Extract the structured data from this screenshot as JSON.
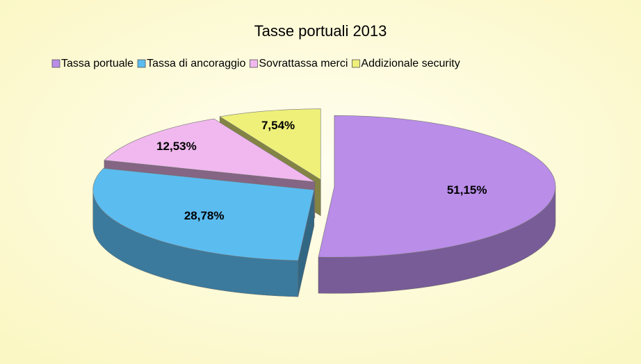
{
  "chart_data": {
    "type": "pie",
    "title": "Tasse portuali 2013",
    "categories": [
      "Tassa portuale",
      "Tassa di ancoraggio",
      "Sovrattassa merci",
      "Addizionale security"
    ],
    "values": [
      51.15,
      28.78,
      12.53,
      7.54
    ],
    "value_labels": [
      "51,15%",
      "28,78%",
      "12,53%",
      "7,54%"
    ],
    "colors": [
      "#b98de8",
      "#5bbcf0",
      "#f0b8ee",
      "#eef07a"
    ],
    "legend": "top"
  }
}
